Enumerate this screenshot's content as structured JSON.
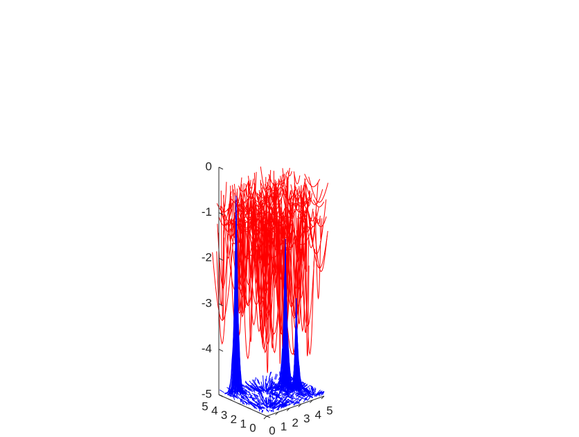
{
  "chart_data": {
    "type": "streamline3d",
    "xlim": [
      0,
      5
    ],
    "xticks": [
      0,
      1,
      2,
      3,
      4,
      5
    ],
    "ylim": [
      0,
      5
    ],
    "yticks": [
      0,
      1,
      2,
      3,
      4,
      5
    ],
    "zlim": [
      -5,
      0
    ],
    "zticks": [
      0,
      -1,
      -2,
      -3,
      -4,
      -5
    ],
    "series": [
      {
        "color": "#ff0000"
      },
      {
        "color": "#0000ff"
      }
    ]
  }
}
